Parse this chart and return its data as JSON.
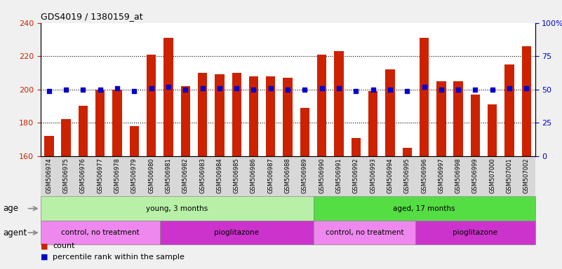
{
  "title": "GDS4019 / 1380159_at",
  "samples": [
    "GSM506974",
    "GSM506975",
    "GSM506976",
    "GSM506977",
    "GSM506978",
    "GSM506979",
    "GSM506980",
    "GSM506981",
    "GSM506982",
    "GSM506983",
    "GSM506984",
    "GSM506985",
    "GSM506986",
    "GSM506987",
    "GSM506988",
    "GSM506989",
    "GSM506990",
    "GSM506991",
    "GSM506992",
    "GSM506993",
    "GSM506994",
    "GSM506995",
    "GSM506996",
    "GSM506997",
    "GSM506998",
    "GSM506999",
    "GSM507000",
    "GSM507001",
    "GSM507002"
  ],
  "counts": [
    172,
    182,
    190,
    200,
    200,
    178,
    221,
    231,
    202,
    210,
    209,
    210,
    208,
    208,
    207,
    189,
    221,
    223,
    171,
    199,
    212,
    165,
    231,
    205,
    205,
    197,
    191,
    215,
    226
  ],
  "percentiles": [
    49,
    50,
    50,
    50,
    51,
    49,
    51,
    52,
    50,
    51,
    51,
    51,
    50,
    51,
    50,
    50,
    51,
    51,
    49,
    50,
    50,
    49,
    52,
    50,
    50,
    50,
    50,
    51,
    51
  ],
  "bar_color": "#cc2200",
  "dot_color": "#0000cc",
  "ylim_left": [
    160,
    240
  ],
  "ylim_right": [
    0,
    100
  ],
  "yticks_left": [
    160,
    180,
    200,
    220,
    240
  ],
  "yticks_right": [
    0,
    25,
    50,
    75,
    100
  ],
  "grid_values": [
    180,
    200,
    220
  ],
  "age_groups": [
    {
      "label": "young, 3 months",
      "start": 0,
      "end": 16,
      "color": "#b8f0a8"
    },
    {
      "label": "aged, 17 months",
      "start": 16,
      "end": 29,
      "color": "#55dd44"
    }
  ],
  "agent_groups": [
    {
      "label": "control, no treatment",
      "start": 0,
      "end": 7,
      "color": "#ee88ee"
    },
    {
      "label": "pioglitazone",
      "start": 7,
      "end": 16,
      "color": "#cc33cc"
    },
    {
      "label": "control, no treatment",
      "start": 16,
      "end": 22,
      "color": "#ee88ee"
    },
    {
      "label": "pioglitazone",
      "start": 22,
      "end": 29,
      "color": "#cc33cc"
    }
  ],
  "legend_count_label": "count",
  "legend_pct_label": "percentile rank within the sample",
  "age_label": "age",
  "agent_label": "agent",
  "fig_bg": "#f0f0f0",
  "plot_bg": "#ffffff",
  "xtick_bg": "#d8d8d8"
}
